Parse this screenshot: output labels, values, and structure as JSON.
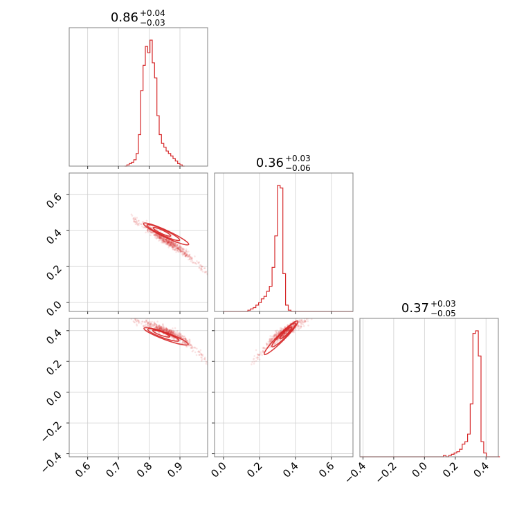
{
  "chart_data": {
    "type": "corner",
    "colors": {
      "series": "#d62728",
      "grid": "#cfcfcf",
      "frame": "#808080"
    },
    "grid": true,
    "parameters": [
      {
        "id": "p0",
        "median": "0.86",
        "plus": "+0.04",
        "minus": "−0.03",
        "range": [
          0.54,
          0.99
        ]
      },
      {
        "id": "p1",
        "median": "0.36",
        "plus": "+0.03",
        "minus": "−0.06",
        "range": [
          -0.05,
          0.72
        ]
      },
      {
        "id": "p2",
        "median": "0.37",
        "plus": "+0.03",
        "minus": "−0.05",
        "range": [
          -0.42,
          0.48
        ]
      }
    ],
    "ticks": {
      "p0": [
        "0.6",
        "0.7",
        "0.8",
        "0.9"
      ],
      "p1": [
        "0.0",
        "0.2",
        "0.4",
        "0.6"
      ],
      "p2_x": [
        "−0.4",
        "−0.2",
        "0.0",
        "0.2",
        "0.4"
      ],
      "p2_y": [
        "−0.4",
        "−0.2",
        "0.0",
        "0.2",
        "0.4"
      ]
    },
    "tick_values": {
      "p0": [
        0.6,
        0.7,
        0.8,
        0.9
      ],
      "p1": [
        0.0,
        0.2,
        0.4,
        0.6
      ],
      "p2": [
        -0.4,
        -0.2,
        0.0,
        0.2,
        0.4
      ]
    },
    "histograms": [
      {
        "param": "p0",
        "bin_start": 0.72,
        "bin_width": 0.0075,
        "counts": [
          0,
          1,
          2,
          3,
          5,
          10,
          25,
          60,
          80,
          95,
          90,
          100,
          82,
          70,
          40,
          25,
          18,
          15,
          12,
          10,
          8,
          6,
          4,
          2,
          1,
          0
        ]
      },
      {
        "param": "p1",
        "bin_start": 0.0,
        "bin_width": 0.015,
        "counts": [
          0,
          0,
          0,
          0,
          0,
          0,
          0,
          0,
          0,
          1,
          2,
          3,
          5,
          7,
          10,
          12,
          16,
          20,
          35,
          60,
          100,
          98,
          30,
          5,
          1,
          0,
          0,
          0,
          0,
          0,
          0,
          0,
          0,
          0,
          0,
          0,
          0,
          0,
          0,
          0,
          0,
          0,
          0,
          0,
          0,
          0,
          0,
          0
        ]
      },
      {
        "param": "p2",
        "bin_start": -0.42,
        "bin_width": 0.0175,
        "counts": [
          0,
          0,
          0,
          0,
          0,
          0,
          0,
          0,
          0,
          0,
          0,
          0,
          0,
          0,
          0,
          0,
          0,
          0,
          0,
          0,
          0,
          0,
          0,
          0,
          0,
          0,
          0,
          0,
          0,
          0,
          0,
          1,
          0,
          1,
          2,
          3,
          4,
          6,
          10,
          12,
          18,
          42,
          98,
          100,
          80,
          12,
          3,
          0,
          0,
          0,
          0,
          0
        ]
      }
    ]
  }
}
